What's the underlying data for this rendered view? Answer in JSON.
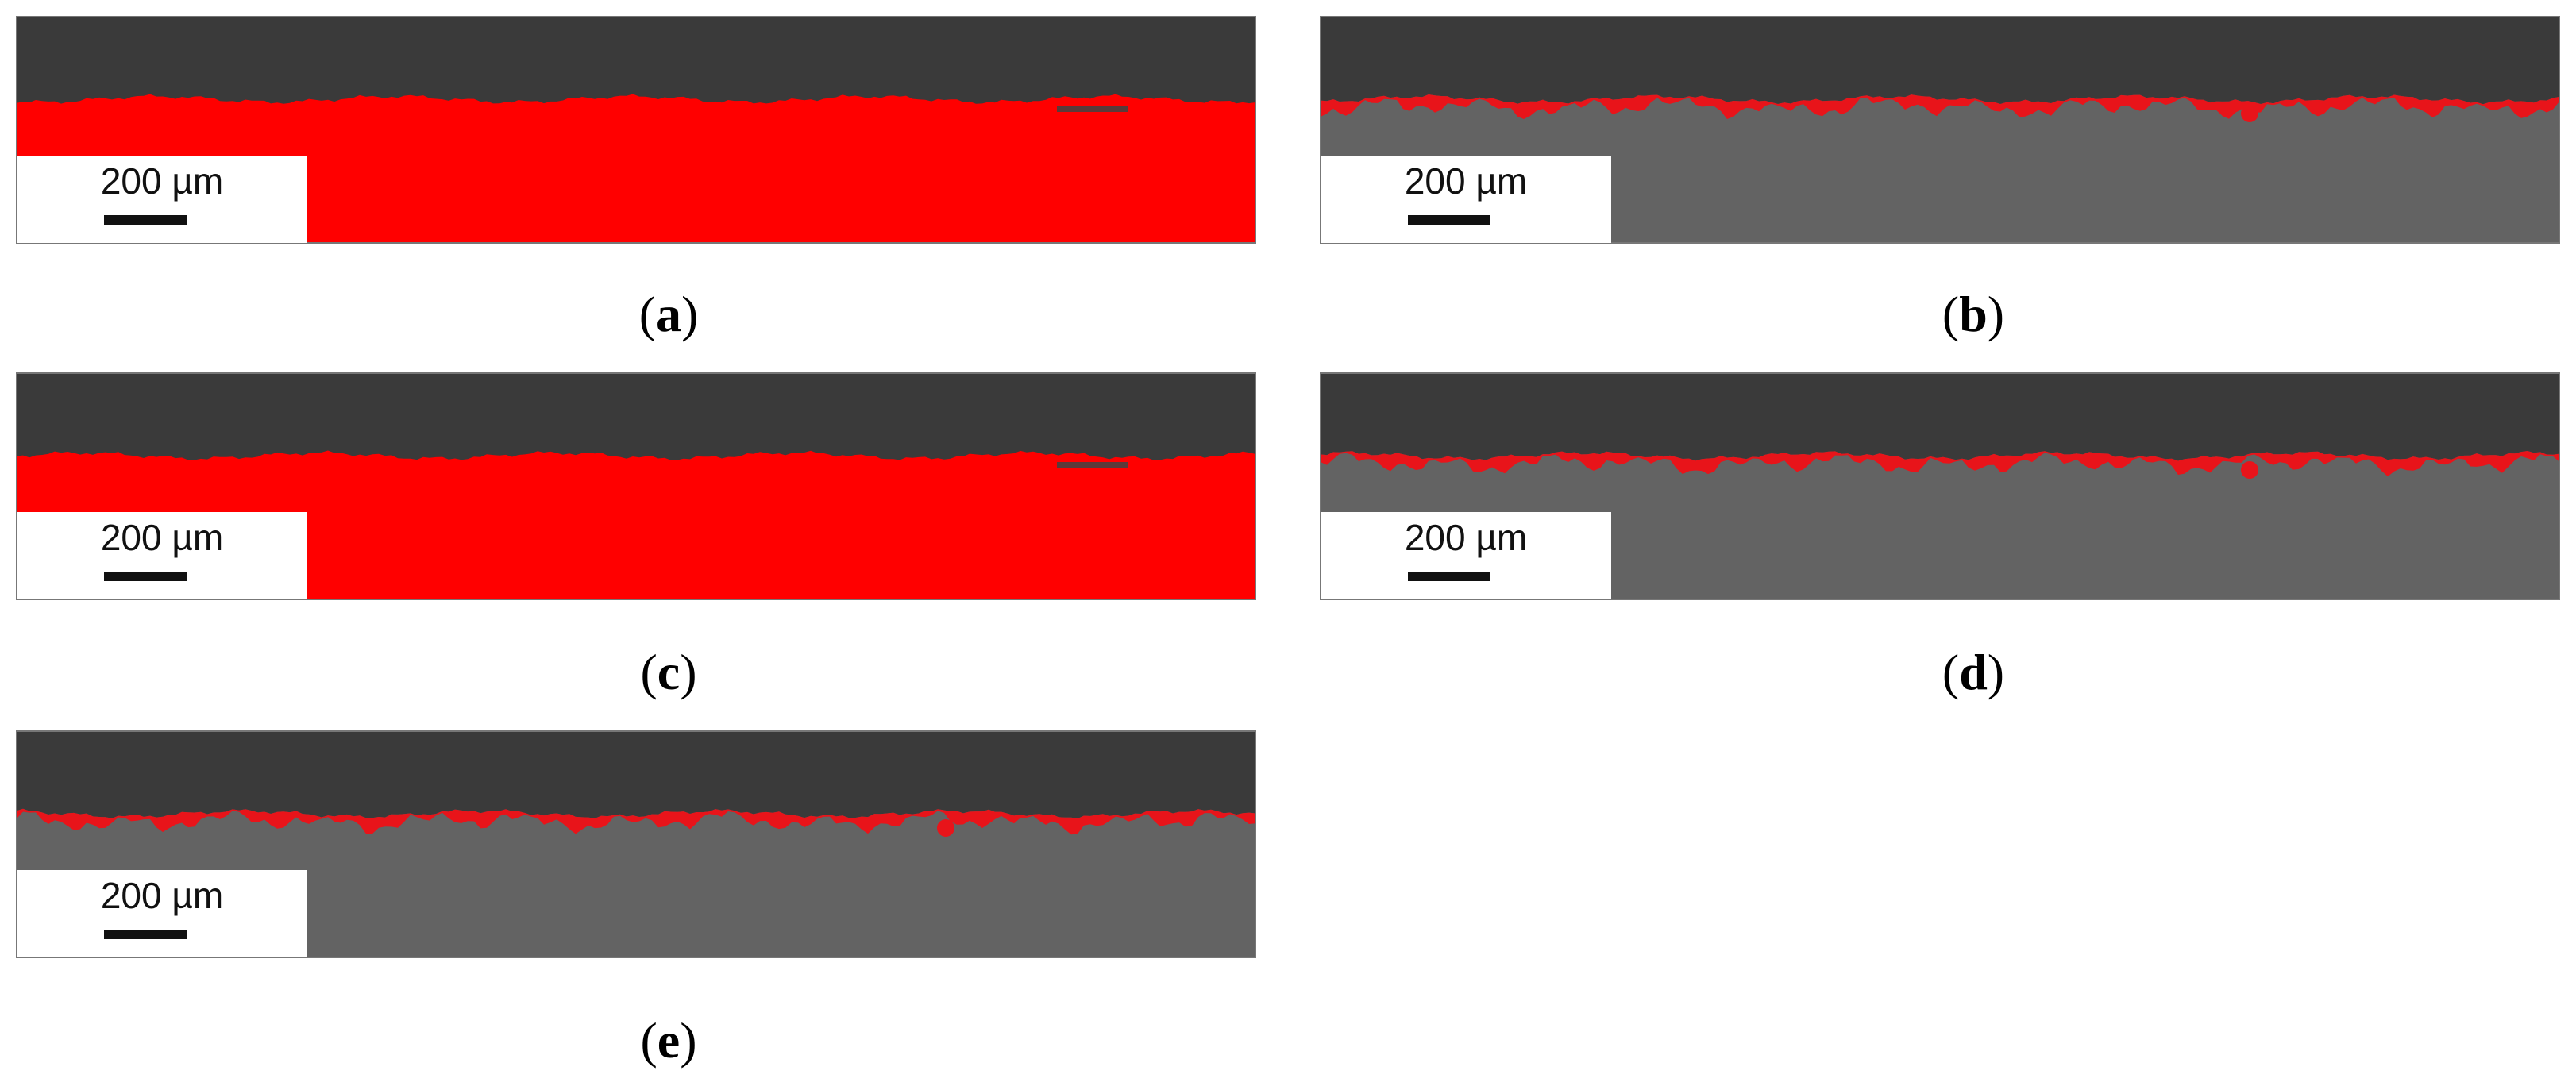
{
  "panels": [
    {
      "scale_bar": "200 µm",
      "caption": [
        "(",
        "a",
        ")"
      ]
    },
    {
      "scale_bar": "200 µm",
      "caption": [
        "(",
        "b",
        ")"
      ]
    },
    {
      "scale_bar": "200 µm",
      "caption": [
        "(",
        "c",
        ")"
      ]
    },
    {
      "scale_bar": "200 µm",
      "caption": [
        "(",
        "d",
        ")"
      ]
    },
    {
      "scale_bar": "200 µm",
      "caption": [
        "(",
        "e",
        ")"
      ]
    }
  ]
}
